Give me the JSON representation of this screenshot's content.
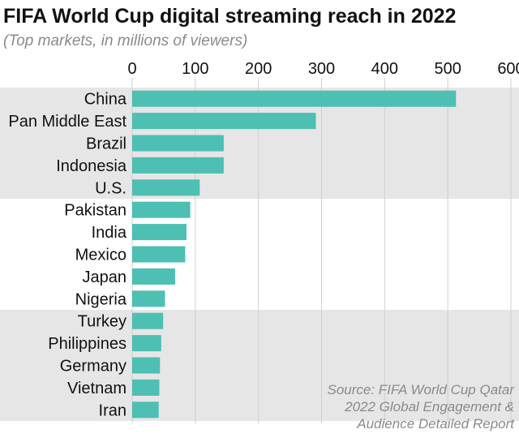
{
  "title": "FIFA World Cup digital streaming reach in 2022",
  "subtitle": "(Top markets, in millions of viewers)",
  "source_lines": [
    "Source: FIFA World Cup Qatar",
    "2022 Global Engagement &",
    "Audience Detailed Report"
  ],
  "colors": {
    "bar": "#4dbfb3",
    "band": "#e6e6e6",
    "grid": "#cfcfcf",
    "text": "#111111",
    "muted": "#8a8a8a"
  },
  "chart_data": {
    "type": "bar",
    "orientation": "horizontal",
    "categories": [
      "China",
      "Pan Middle East",
      "Brazil",
      "Indonesia",
      "U.S.",
      "Pakistan",
      "India",
      "Mexico",
      "Japan",
      "Nigeria",
      "Turkey",
      "Philippines",
      "Germany",
      "Vietnam",
      "Iran"
    ],
    "values": [
      513,
      291,
      145,
      145,
      107,
      92,
      86,
      84,
      68,
      52,
      49,
      46,
      44,
      43,
      42
    ],
    "xlim": [
      0,
      600
    ],
    "xticks": [
      0,
      100,
      200,
      300,
      400,
      500,
      600
    ],
    "xlabel": "",
    "ylabel": "",
    "grid": true,
    "tick_position": "top",
    "bands": [
      [
        0,
        4
      ],
      [
        10,
        14
      ]
    ]
  }
}
